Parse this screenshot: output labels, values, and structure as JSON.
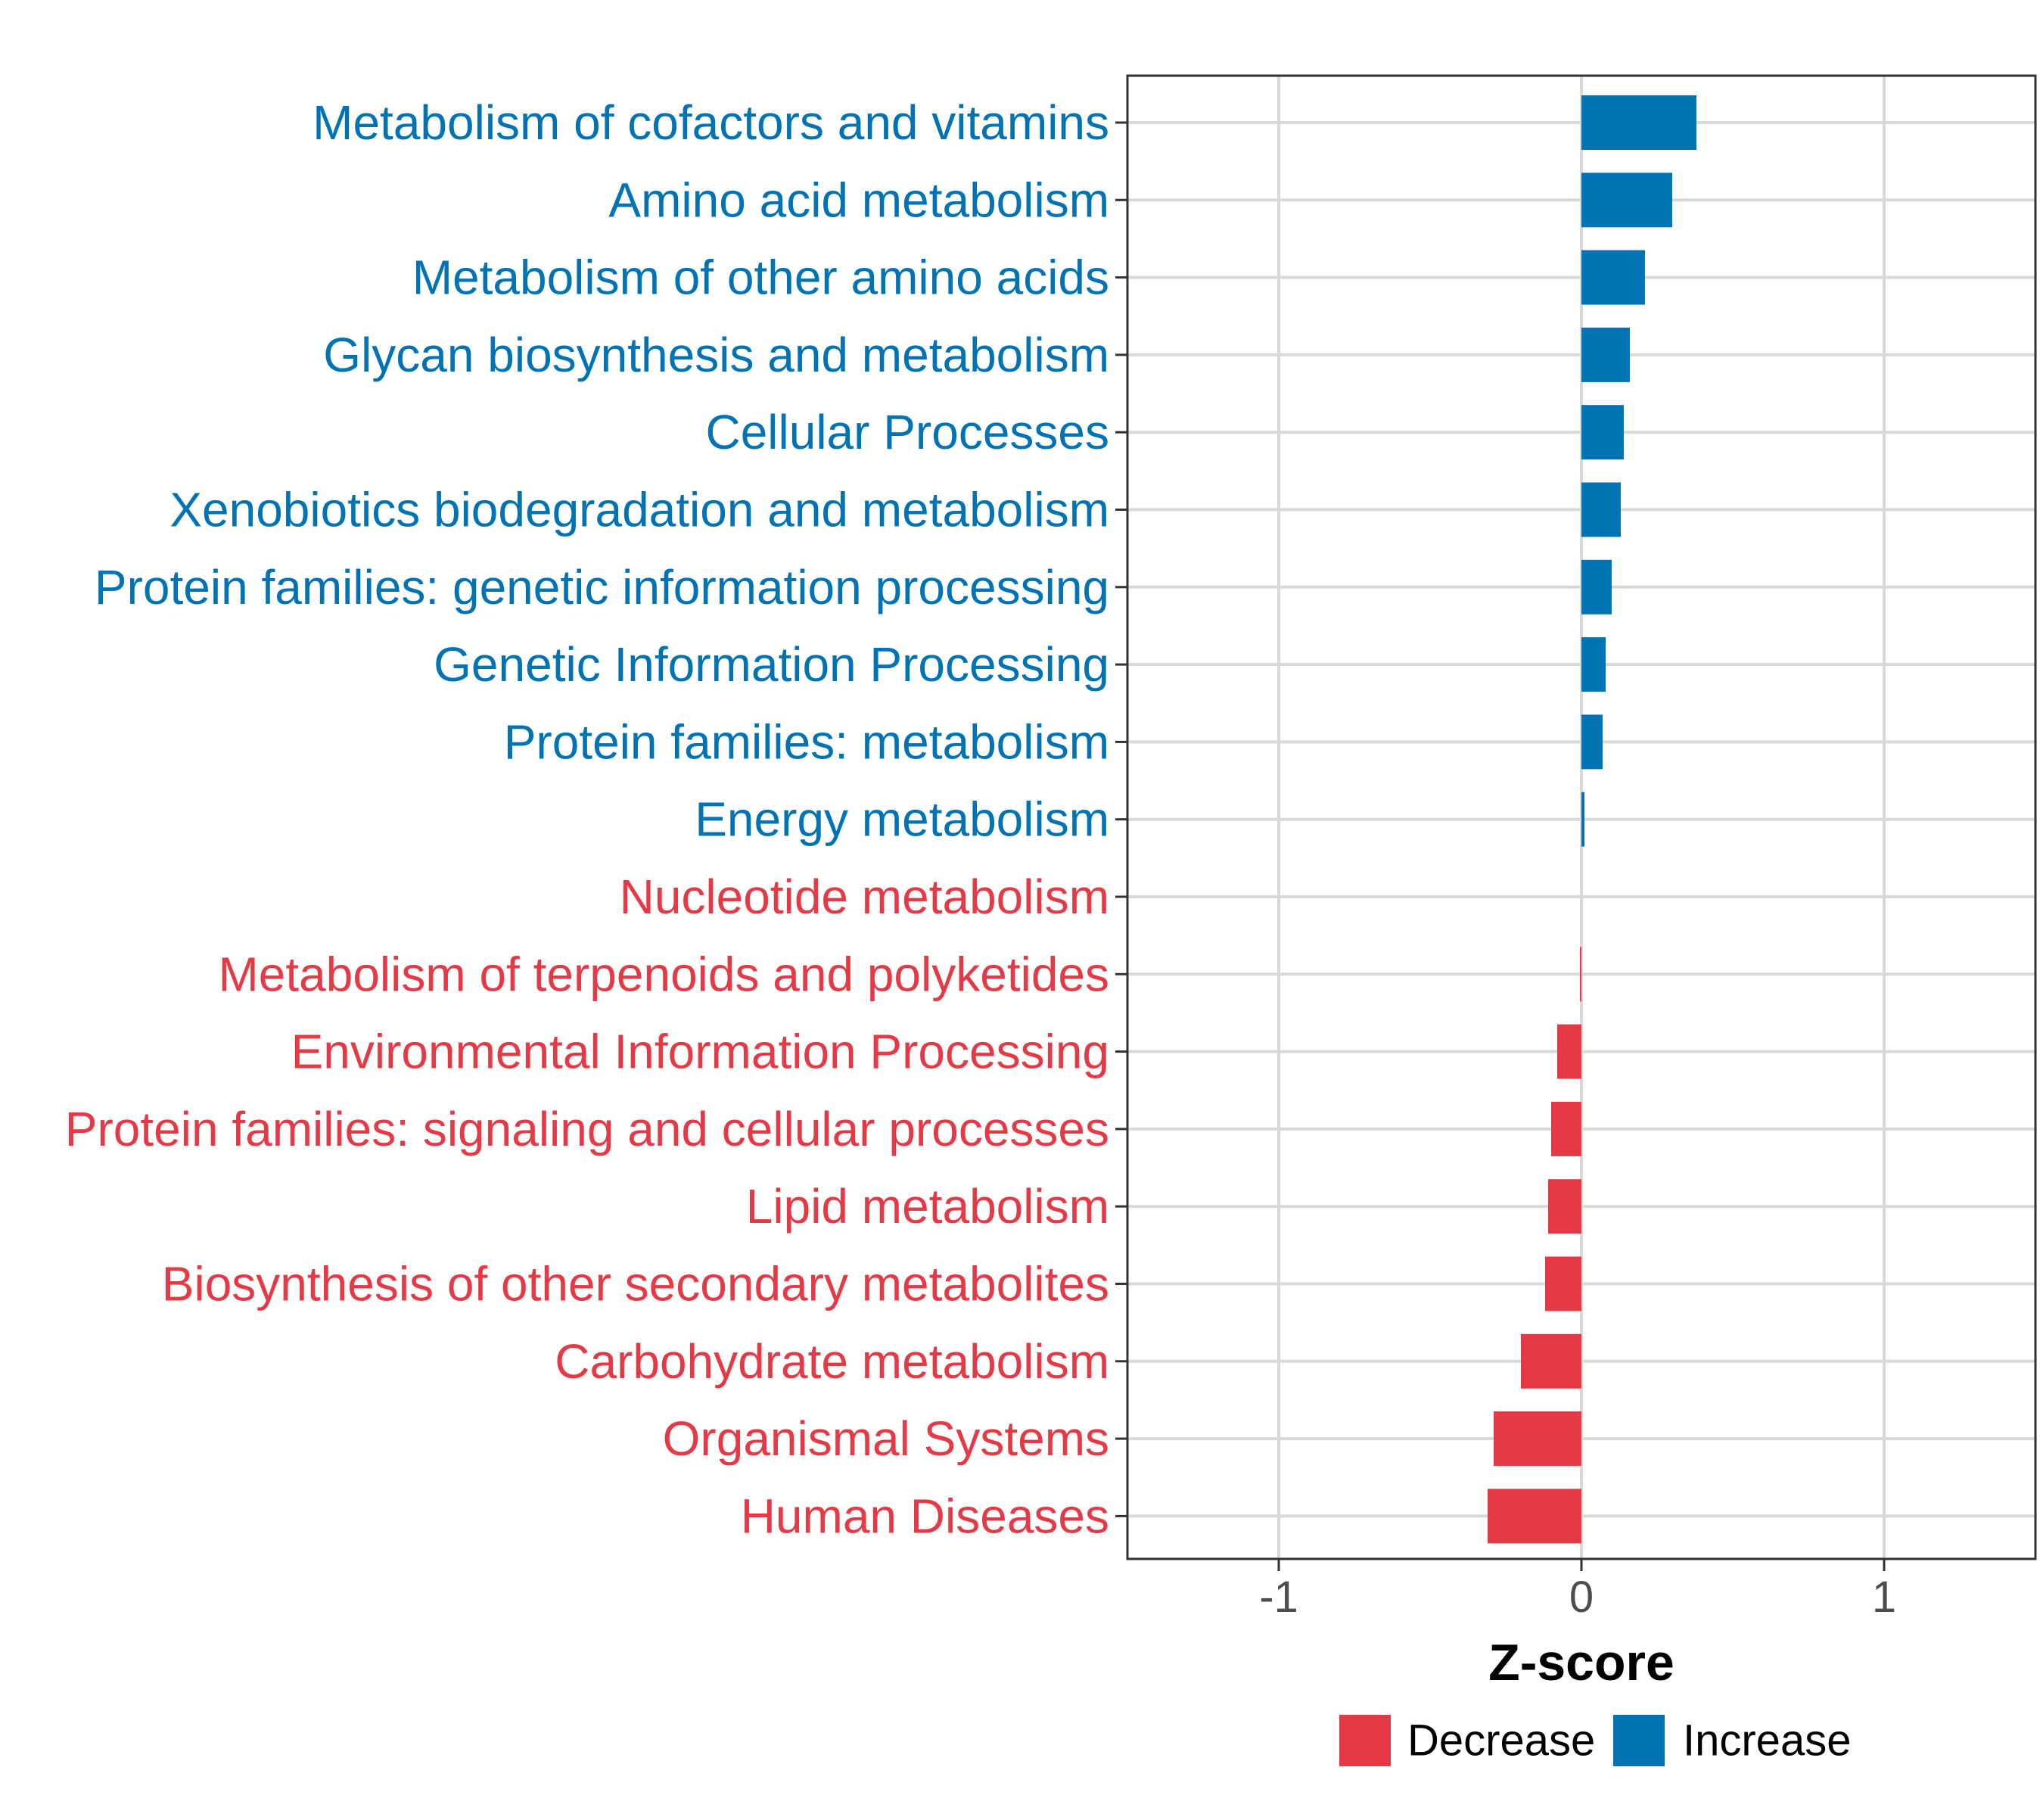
{
  "colors": {
    "increase": "#0073B5",
    "decrease": "#E63946",
    "grid": "#d9d9d9",
    "panel_border": "#333333"
  },
  "chart_data": {
    "type": "bar",
    "orientation": "horizontal",
    "title": "",
    "xlabel": "Z-score",
    "ylabel": "",
    "xlim": [
      -1.5,
      1.5
    ],
    "xticks": [
      {
        "value": -1,
        "label": "-1"
      },
      {
        "value": 0,
        "label": "0"
      },
      {
        "value": 1,
        "label": "1"
      }
    ],
    "grid": true,
    "legend_position": "bottom",
    "legend": [
      {
        "key": "decrease",
        "label": "Decrease"
      },
      {
        "key": "increase",
        "label": "Increase"
      }
    ],
    "categories": [
      "Metabolism of cofactors and vitamins",
      "Amino acid metabolism",
      "Metabolism of other amino acids",
      "Glycan biosynthesis and metabolism",
      "Cellular Processes",
      "Xenobiotics biodegradation and metabolism",
      "Protein families: genetic information processing",
      "Genetic Information Processing",
      "Protein families: metabolism",
      "Energy metabolism",
      "Nucleotide metabolism",
      "Metabolism of terpenoids and polyketides",
      "Environmental Information Processing",
      "Protein families: signaling and cellular processes",
      "Lipid metabolism",
      "Biosynthesis of other secondary metabolites",
      "Carbohydrate metabolism",
      "Organismal Systems",
      "Human Diseases"
    ],
    "values": [
      0.38,
      0.3,
      0.21,
      0.16,
      0.14,
      0.13,
      0.1,
      0.08,
      0.07,
      0.01,
      0.0,
      -0.005,
      -0.08,
      -0.1,
      -0.11,
      -0.12,
      -0.2,
      -0.29,
      -0.31
    ],
    "groups": [
      "increase",
      "increase",
      "increase",
      "increase",
      "increase",
      "increase",
      "increase",
      "increase",
      "increase",
      "increase",
      "decrease",
      "decrease",
      "decrease",
      "decrease",
      "decrease",
      "decrease",
      "decrease",
      "decrease",
      "decrease"
    ]
  }
}
